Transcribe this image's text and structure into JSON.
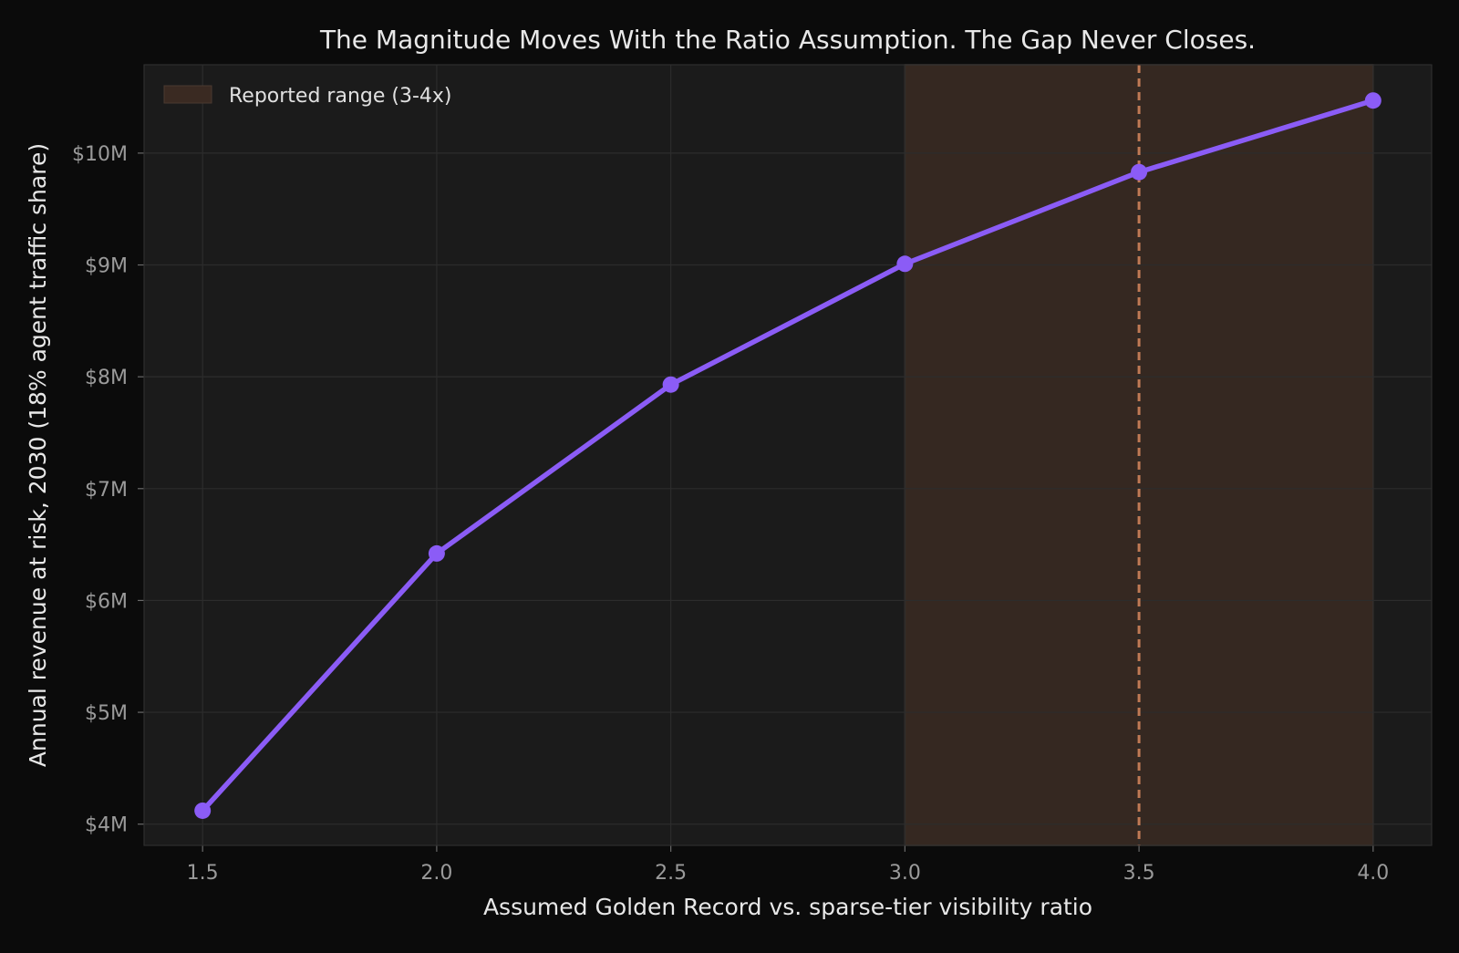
{
  "chart_data": {
    "type": "line",
    "title": "The Magnitude Moves With the Ratio Assumption. The Gap Never Closes.",
    "xlabel": "Assumed Golden Record vs. sparse-tier visibility ratio",
    "ylabel": "Annual revenue at risk, 2030 (18% agent traffic share)",
    "x": [
      1.5,
      2.0,
      2.5,
      3.0,
      3.5,
      4.0
    ],
    "series": [
      {
        "values": [
          4.12,
          6.42,
          7.93,
          9.01,
          9.83,
          10.47
        ],
        "color": "#8b5cf6"
      }
    ],
    "xticks": [
      1.5,
      2.0,
      2.5,
      3.0,
      3.5,
      4.0
    ],
    "xtick_labels": [
      "1.5",
      "2.0",
      "2.5",
      "3.0",
      "3.5",
      "4.0"
    ],
    "yticks": [
      4,
      5,
      6,
      7,
      8,
      9,
      10
    ],
    "ytick_labels": [
      "$4M",
      "$5M",
      "$6M",
      "$7M",
      "$8M",
      "$9M",
      "$10M"
    ],
    "xlim": [
      1.375,
      4.125
    ],
    "ylim": [
      3.81,
      10.79
    ],
    "y_unit": "$M",
    "grid": true,
    "legend": {
      "position": "top-left",
      "entries": [
        "Reported range (3-4x)"
      ]
    },
    "shaded_region": {
      "label": "Reported range (3-4x)",
      "x_start": 3.0,
      "x_end": 4.0,
      "color": "#3a2a22"
    },
    "reference_line": {
      "x": 3.5,
      "style": "dashed",
      "color": "#c07a55"
    },
    "colors": {
      "background": "#0b0b0b",
      "plot_background": "#1b1b1b",
      "line": "#8b5cf6",
      "text": "#e8e8e8",
      "tick_text": "#9a9a9a"
    }
  }
}
